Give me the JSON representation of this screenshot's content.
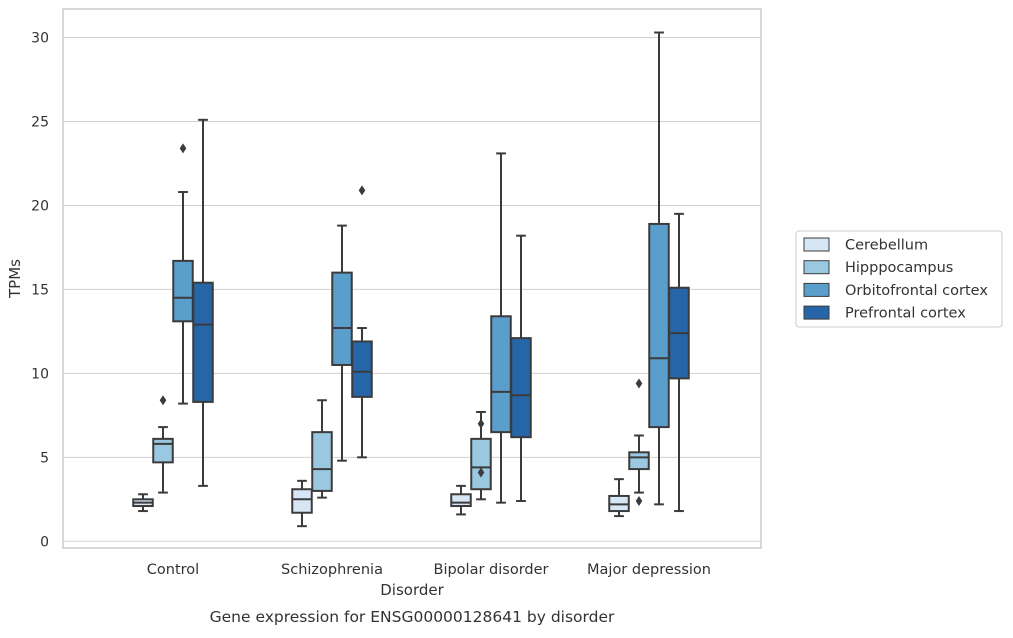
{
  "chart_data": {
    "type": "box",
    "title": "",
    "caption": "Gene expression for ENSG00000128641 by disorder",
    "xlabel": "Disorder",
    "ylabel": "TPMs",
    "ylim": [
      -0.4,
      31.7
    ],
    "yticks": [
      0,
      5,
      10,
      15,
      20,
      25,
      30
    ],
    "grid": true,
    "legend_position": "right",
    "categories": [
      "Control",
      "Schizophrenia",
      "Bipolar disorder",
      "Major depression"
    ],
    "series": [
      {
        "name": "Cerebellum",
        "color": "#d6e6f4",
        "boxes": [
          {
            "whisker_low": 1.8,
            "q1": 2.1,
            "median": 2.3,
            "q3": 2.5,
            "whisker_high": 2.8,
            "outliers": []
          },
          {
            "whisker_low": 0.9,
            "q1": 1.7,
            "median": 2.5,
            "q3": 3.1,
            "whisker_high": 3.6,
            "outliers": []
          },
          {
            "whisker_low": 1.6,
            "q1": 2.1,
            "median": 2.3,
            "q3": 2.8,
            "whisker_high": 3.3,
            "outliers": []
          },
          {
            "whisker_low": 1.5,
            "q1": 1.8,
            "median": 2.2,
            "q3": 2.7,
            "whisker_high": 3.7,
            "outliers": []
          }
        ]
      },
      {
        "name": "Hipppocampus",
        "color": "#9ac8e0",
        "boxes": [
          {
            "whisker_low": 2.9,
            "q1": 4.7,
            "median": 5.8,
            "q3": 6.1,
            "whisker_high": 6.8,
            "outliers": [
              8.4
            ]
          },
          {
            "whisker_low": 2.6,
            "q1": 3.0,
            "median": 4.3,
            "q3": 6.5,
            "whisker_high": 8.4,
            "outliers": []
          },
          {
            "whisker_low": 2.5,
            "q1": 3.1,
            "median": 4.4,
            "q3": 6.1,
            "whisker_high": 7.7,
            "outliers": [
              4.1,
              7.0
            ]
          },
          {
            "whisker_low": 2.9,
            "q1": 4.3,
            "median": 5.0,
            "q3": 5.3,
            "whisker_high": 6.3,
            "outliers": [
              2.4,
              9.4
            ]
          }
        ]
      },
      {
        "name": "Orbitofrontal cortex",
        "color": "#5a9ecc",
        "boxes": [
          {
            "whisker_low": 8.2,
            "q1": 13.1,
            "median": 14.5,
            "q3": 16.7,
            "whisker_high": 20.8,
            "outliers": [
              23.4
            ]
          },
          {
            "whisker_low": 4.8,
            "q1": 10.5,
            "median": 12.7,
            "q3": 16.0,
            "whisker_high": 18.8,
            "outliers": []
          },
          {
            "whisker_low": 2.3,
            "q1": 6.5,
            "median": 8.9,
            "q3": 13.4,
            "whisker_high": 23.1,
            "outliers": []
          },
          {
            "whisker_low": 2.2,
            "q1": 6.8,
            "median": 10.9,
            "q3": 18.9,
            "whisker_high": 30.3,
            "outliers": []
          }
        ]
      },
      {
        "name": "Prefrontal cortex",
        "color": "#2666a8",
        "boxes": [
          {
            "whisker_low": 3.3,
            "q1": 8.3,
            "median": 12.9,
            "q3": 15.4,
            "whisker_high": 25.1,
            "outliers": []
          },
          {
            "whisker_low": 5.0,
            "q1": 8.6,
            "median": 10.1,
            "q3": 11.9,
            "whisker_high": 12.7,
            "outliers": [
              20.9
            ]
          },
          {
            "whisker_low": 2.4,
            "q1": 6.2,
            "median": 8.7,
            "q3": 12.1,
            "whisker_high": 18.2,
            "outliers": []
          },
          {
            "whisker_low": 1.8,
            "q1": 9.7,
            "median": 12.4,
            "q3": 15.1,
            "whisker_high": 19.5,
            "outliers": []
          }
        ]
      }
    ]
  }
}
